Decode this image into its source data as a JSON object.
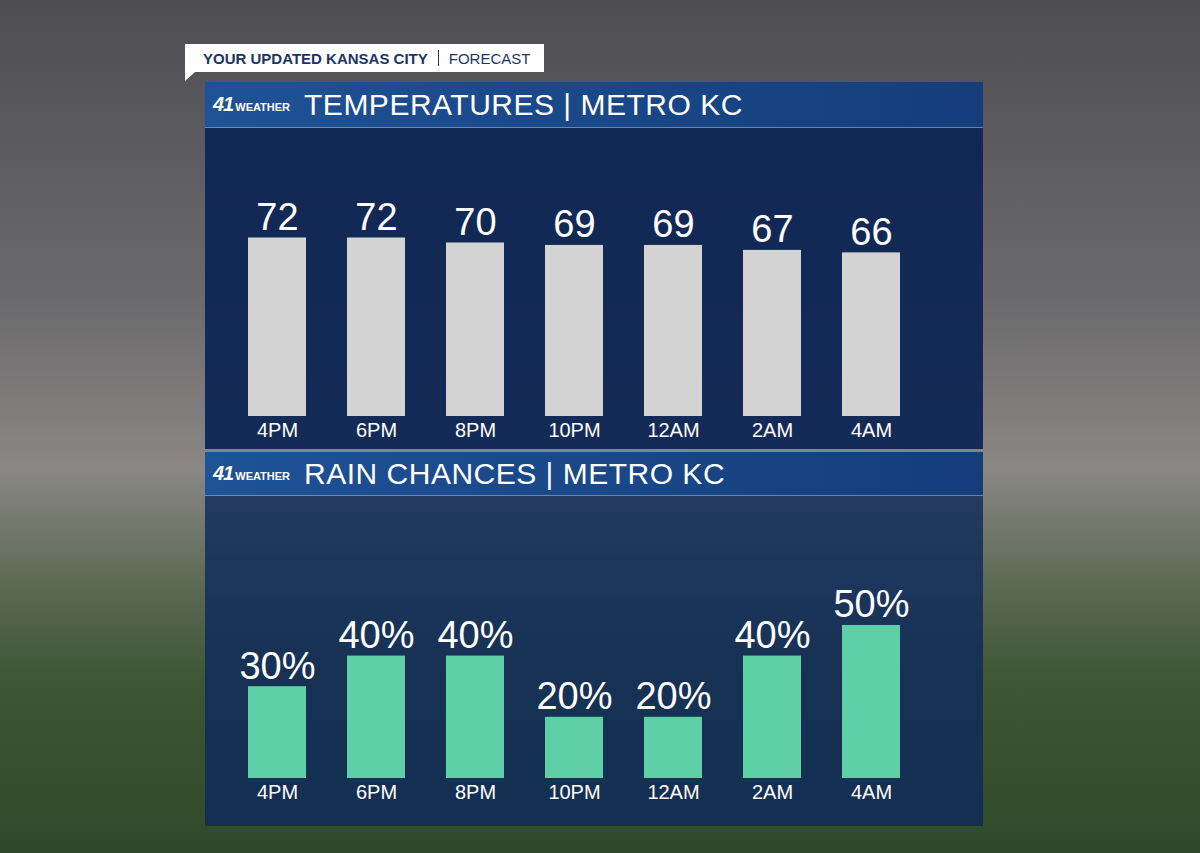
{
  "header": {
    "title": "YOUR UPDATED KANSAS CITY",
    "subtitle": "FORECAST"
  },
  "logo": {
    "number": "41",
    "text": "WEATHER"
  },
  "chart_data": [
    {
      "type": "bar",
      "title": "TEMPERATURES | METRO KC",
      "categories": [
        "4PM",
        "6PM",
        "8PM",
        "10PM",
        "12AM",
        "2AM",
        "4AM"
      ],
      "values": [
        72,
        72,
        70,
        69,
        69,
        67,
        66
      ],
      "color": "#d3d3d3",
      "ylim": [
        0,
        96
      ],
      "data_labels": true,
      "tick_labels": "x"
    },
    {
      "type": "bar",
      "title": "RAIN CHANCES | METRO KC",
      "categories": [
        "4PM",
        "6PM",
        "8PM",
        "10PM",
        "12AM",
        "2AM",
        "4AM"
      ],
      "values": [
        30,
        40,
        40,
        20,
        20,
        40,
        50
      ],
      "value_labels": [
        "30%",
        "40%",
        "40%",
        "20%",
        "20%",
        "40%",
        "50%"
      ],
      "color": "#5ecfa6",
      "ylim": [
        0,
        66
      ],
      "data_labels": true,
      "tick_labels": "x"
    }
  ]
}
